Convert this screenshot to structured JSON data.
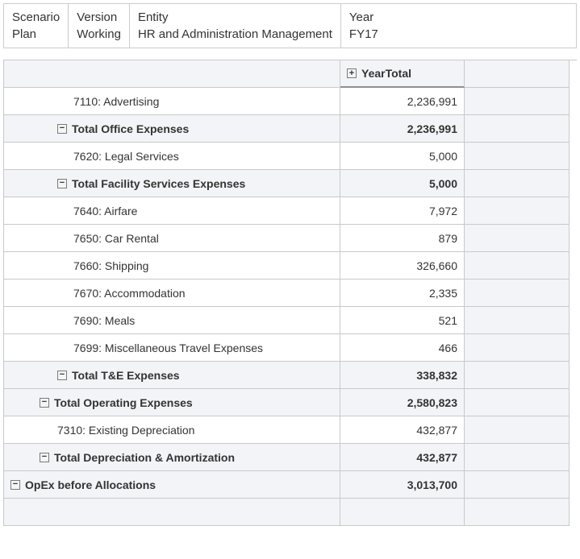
{
  "pov": [
    {
      "label": "Scenario",
      "value": "Plan"
    },
    {
      "label": "Version",
      "value": "Working"
    },
    {
      "label": "Entity",
      "value": "HR and Administration Management"
    },
    {
      "label": "Year",
      "value": "FY17"
    }
  ],
  "column_header": "YearTotal",
  "rows": [
    {
      "label": "7110: Advertising",
      "value": "2,236,991",
      "indent": 3,
      "bold": false,
      "toggle": "",
      "shade": false
    },
    {
      "label": "Total Office Expenses",
      "value": "2,236,991",
      "indent": 2,
      "bold": true,
      "toggle": "−",
      "shade": true
    },
    {
      "label": "7620: Legal Services",
      "value": "5,000",
      "indent": 3,
      "bold": false,
      "toggle": "",
      "shade": false
    },
    {
      "label": "Total Facility Services Expenses",
      "value": "5,000",
      "indent": 2,
      "bold": true,
      "toggle": "−",
      "shade": true
    },
    {
      "label": "7640: Airfare",
      "value": "7,972",
      "indent": 3,
      "bold": false,
      "toggle": "",
      "shade": false
    },
    {
      "label": "7650: Car Rental",
      "value": "879",
      "indent": 3,
      "bold": false,
      "toggle": "",
      "shade": false
    },
    {
      "label": "7660: Shipping",
      "value": "326,660",
      "indent": 3,
      "bold": false,
      "toggle": "",
      "shade": false
    },
    {
      "label": "7670: Accommodation",
      "value": "2,335",
      "indent": 3,
      "bold": false,
      "toggle": "",
      "shade": false
    },
    {
      "label": "7690: Meals",
      "value": "521",
      "indent": 3,
      "bold": false,
      "toggle": "",
      "shade": false
    },
    {
      "label": "7699: Miscellaneous Travel Expenses",
      "value": "466",
      "indent": 3,
      "bold": false,
      "toggle": "",
      "shade": false
    },
    {
      "label": "Total T&E Expenses",
      "value": "338,832",
      "indent": 2,
      "bold": true,
      "toggle": "−",
      "shade": true
    },
    {
      "label": "Total Operating Expenses",
      "value": "2,580,823",
      "indent": 1,
      "bold": true,
      "toggle": "−",
      "shade": true
    },
    {
      "label": "7310: Existing Depreciation",
      "value": "432,877",
      "indent": 2,
      "bold": false,
      "toggle": "",
      "shade": false
    },
    {
      "label": "Total Depreciation & Amortization",
      "value": "432,877",
      "indent": 1,
      "bold": true,
      "toggle": "−",
      "shade": true
    },
    {
      "label": "OpEx before Allocations",
      "value": "3,013,700",
      "indent": 0,
      "bold": true,
      "toggle": "−",
      "shade": true
    }
  ]
}
